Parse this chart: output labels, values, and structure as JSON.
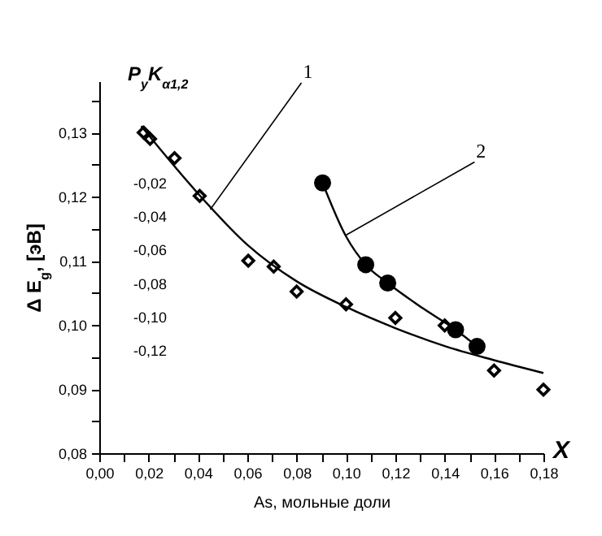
{
  "chart_data": {
    "type": "scatter",
    "xlabel": "As, мольные доли",
    "ylabel": "Δ E$_{g}$, [эВ]",
    "y2label": "P$_{y}$K$_{α1,2}$",
    "xlim": [
      0,
      0.18
    ],
    "xticks": [
      {
        "value": 0,
        "label": "0,00"
      },
      {
        "value": 0.01,
        "label": null
      },
      {
        "value": 0.02,
        "label": "0,02"
      },
      {
        "value": 0.03,
        "label": null
      },
      {
        "value": 0.04,
        "label": "0,04"
      },
      {
        "value": 0.05,
        "label": null
      },
      {
        "value": 0.06,
        "label": "0,06"
      },
      {
        "value": 0.07,
        "label": null
      },
      {
        "value": 0.08,
        "label": "0,08"
      },
      {
        "value": 0.09,
        "label": null
      },
      {
        "value": 0.1,
        "label": "0,10"
      },
      {
        "value": 0.11,
        "label": null
      },
      {
        "value": 0.12,
        "label": "0,12"
      },
      {
        "value": 0.13,
        "label": null
      },
      {
        "value": 0.14,
        "label": "0,14"
      },
      {
        "value": 0.15,
        "label": null
      },
      {
        "value": 0.16,
        "label": "0,16"
      },
      {
        "value": 0.17,
        "label": null
      },
      {
        "value": 0.18,
        "label": "0,18"
      }
    ],
    "ylim": [
      0.08,
      0.138
    ],
    "yticks": [
      {
        "value": 0.08,
        "label": "0,08"
      },
      {
        "value": 0.085,
        "label": null
      },
      {
        "value": 0.09,
        "label": "0,09"
      },
      {
        "value": 0.095,
        "label": null
      },
      {
        "value": 0.1,
        "label": "0,10"
      },
      {
        "value": 0.105,
        "label": null
      },
      {
        "value": 0.11,
        "label": "0,11"
      },
      {
        "value": 0.115,
        "label": null
      },
      {
        "value": 0.12,
        "label": "0,12"
      },
      {
        "value": 0.125,
        "label": null
      },
      {
        "value": 0.13,
        "label": "0,13"
      },
      {
        "value": 0.135,
        "label": null
      }
    ],
    "y2lim": [
      -0.182,
      0.041
    ],
    "y2ticks": [
      {
        "value": -0.02,
        "label": "-0,02"
      },
      {
        "value": -0.04,
        "label": "-0,04"
      },
      {
        "value": -0.06,
        "label": "-0,06"
      },
      {
        "value": -0.08,
        "label": "-0,08"
      },
      {
        "value": -0.1,
        "label": "-0,10"
      },
      {
        "value": -0.12,
        "label": "-0,12"
      }
    ],
    "series": [
      {
        "marker": "diamond",
        "color": "#000000",
        "x": [
          0.018,
          0.0206,
          0.0305,
          0.0407,
          0.0604,
          0.0707,
          0.08,
          0.1,
          0.12,
          0.14,
          0.16,
          0.18
        ],
        "values": [
          0.13,
          0.129,
          0.126,
          0.1201,
          0.11,
          0.1091,
          0.1052,
          0.1032,
          0.1011,
          0.0999,
          0.0929,
          0.0899
        ]
      },
      {
        "type": "line",
        "color": "#000000",
        "x": [
          0.017,
          0.04,
          0.06,
          0.08,
          0.1,
          0.12,
          0.14,
          0.16,
          0.18
        ],
        "values": [
          0.131,
          0.1205,
          0.1125,
          0.1068,
          0.1028,
          0.0995,
          0.0967,
          0.0945,
          0.0925
        ]
      },
      {
        "marker": "circle",
        "axis": "y2",
        "color": "#000000",
        "x": [
          0.0905,
          0.108,
          0.1169,
          0.1444,
          0.1531
        ],
        "values": [
          -0.02,
          -0.069,
          -0.08,
          -0.108,
          -0.118
        ]
      },
      {
        "type": "line",
        "axis": "y2",
        "color": "#000000",
        "x": [
          0.0905,
          0.1,
          0.108,
          0.1169,
          0.131,
          0.1444,
          0.1531
        ],
        "values": [
          -0.02,
          -0.052,
          -0.069,
          -0.08,
          -0.095,
          -0.108,
          -0.118
        ]
      }
    ],
    "annotations": [
      {
        "text": "1",
        "x": 0.045,
        "y": 0.118
      },
      {
        "text": "2",
        "x": 0.1,
        "y": 0.114
      },
      "X"
    ]
  }
}
